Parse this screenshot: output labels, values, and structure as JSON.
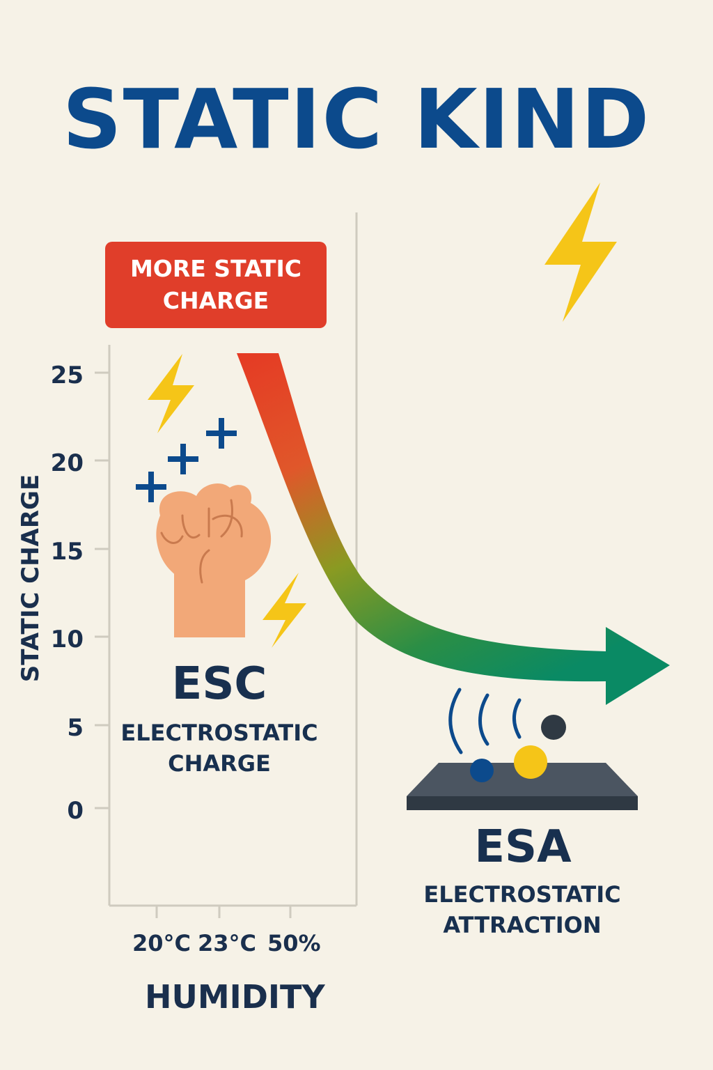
{
  "title": "STATIC KIND",
  "badge": {
    "line1": "MORE STATIC",
    "line2": "CHARGE"
  },
  "chart_data": {
    "type": "line",
    "ylabel": "STATIC CHARGE",
    "xlabel": "HUMIDITY",
    "yticks": [
      "25",
      "20",
      "15",
      "10",
      "5",
      "0"
    ],
    "xticks": [
      "20°C",
      "23°C",
      "50%"
    ],
    "ylim": [
      0,
      25
    ],
    "grid": false
  },
  "esc": {
    "abbr": "ESC",
    "line1": "ELECTROSTATIC",
    "line2": "CHARGE"
  },
  "esa": {
    "abbr": "ESA",
    "line1": "ELECTROSTATIC",
    "line2": "ATTRACTION"
  },
  "colors": {
    "title": "#0c4a8c",
    "badge": "#e03e2a",
    "arrow_start": "#e53a24",
    "arrow_mid": "#8a9a22",
    "arrow_end": "#0a8a64",
    "bolt": "#f5c518",
    "plus": "#0c4a8c",
    "skin": "#f2a878"
  },
  "icons": [
    "lightning-bolt-icon",
    "plus-icon",
    "fist-icon",
    "wave-icon",
    "ball-icon",
    "plate-icon"
  ]
}
